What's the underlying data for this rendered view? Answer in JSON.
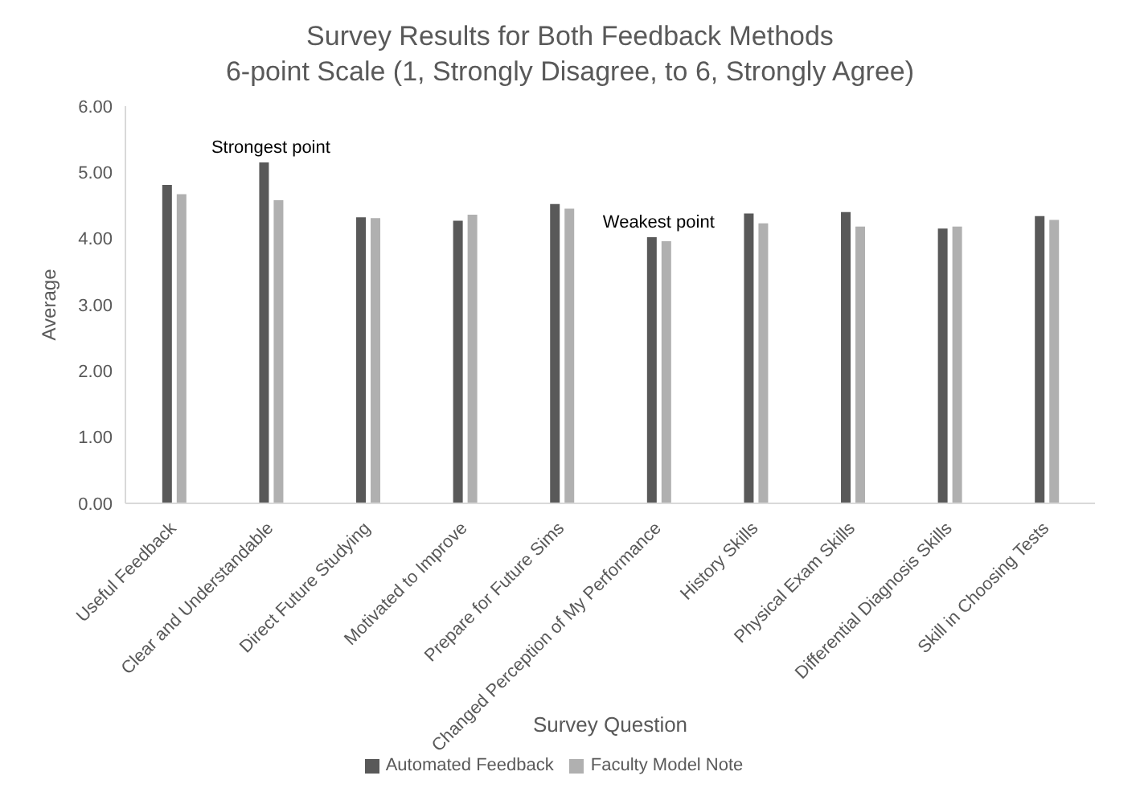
{
  "chart_data": {
    "type": "bar",
    "title": "Survey Results for Both Feedback Methods",
    "subtitle": "6-point Scale (1, Strongly Disagree, to 6, Strongly Agree)",
    "xlabel": "Survey Question",
    "ylabel": "Average",
    "categories": [
      "Useful Feedback",
      "Clear and Understandable",
      "Direct Future Studying",
      "Motivated to Improve",
      "Prepare for Future Sims",
      "Changed Perception of My Performance",
      "History Skills",
      "Physical Exam Skills",
      "Differential Diagnosis Skills",
      "Skill in Choosing Tests"
    ],
    "series": [
      {
        "name": "Automated Feedback",
        "color": "#595959",
        "values": [
          4.81,
          5.15,
          4.32,
          4.27,
          4.52,
          4.02,
          4.38,
          4.4,
          4.15,
          4.34
        ]
      },
      {
        "name": "Faculty Model Note",
        "color": "#b0b0b0",
        "values": [
          4.67,
          4.58,
          4.31,
          4.36,
          4.45,
          3.96,
          4.23,
          4.18,
          4.18,
          4.28
        ]
      }
    ],
    "ylim": [
      0,
      6
    ],
    "yticks": [
      {
        "value": 0,
        "label": "0.00"
      },
      {
        "value": 1,
        "label": "1.00"
      },
      {
        "value": 2,
        "label": "2.00"
      },
      {
        "value": 3,
        "label": "3.00"
      },
      {
        "value": 4,
        "label": "4.00"
      },
      {
        "value": 5,
        "label": "5.00"
      },
      {
        "value": 6,
        "label": "6.00"
      }
    ],
    "annotations": [
      {
        "text": "Strongest point",
        "x": "Clear and Understandable",
        "y": 5.15
      },
      {
        "text": "Weakest point",
        "x": "Changed Perception of My Performance",
        "y": 4.02
      }
    ],
    "grid": false,
    "legend": "bottom"
  }
}
